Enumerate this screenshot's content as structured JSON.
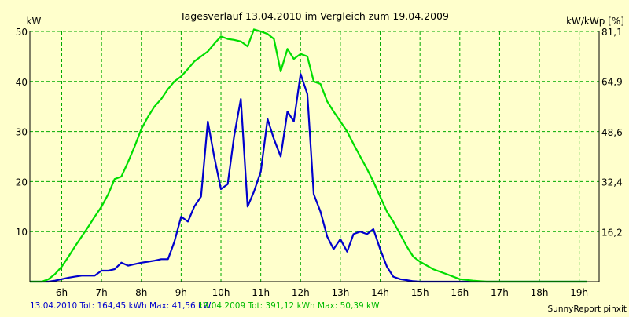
{
  "chart_data": {
    "type": "line",
    "title": "Tagesverlauf 13.04.2010 im Vergleich zum 19.04.2009",
    "ylabel_left": "kW",
    "ylabel_right": "kW/kWp [%]",
    "ylim": [
      0,
      50
    ],
    "yticks": [
      10,
      20,
      30,
      40,
      50
    ],
    "right_ylim": [
      0,
      81.1
    ],
    "right_yticks": [
      "16,2",
      "32,4",
      "48,6",
      "64,9",
      "81,1"
    ],
    "xlim": [
      5.2,
      19.5
    ],
    "xticks": [
      6,
      7,
      8,
      9,
      10,
      11,
      12,
      13,
      14,
      15,
      16,
      17,
      18,
      19
    ],
    "xtick_labels": [
      "6h",
      "7h",
      "8h",
      "9h",
      "10h",
      "11h",
      "12h",
      "13h",
      "14h",
      "15h",
      "16h",
      "17h",
      "18h",
      "19h"
    ],
    "grid": true,
    "colors": {
      "background": "#ffffcc",
      "grid": "#00aa00",
      "axis": "#000000"
    },
    "series": [
      {
        "name": "13.04.2010",
        "color": "#0000cc",
        "x": [
          5.2,
          5.67,
          5.83,
          6.0,
          6.17,
          6.33,
          6.5,
          6.67,
          6.83,
          7.0,
          7.17,
          7.33,
          7.5,
          7.67,
          7.83,
          8.0,
          8.17,
          8.33,
          8.5,
          8.67,
          8.83,
          9.0,
          9.17,
          9.33,
          9.5,
          9.67,
          9.83,
          10.0,
          10.17,
          10.33,
          10.5,
          10.67,
          10.83,
          11.0,
          11.17,
          11.33,
          11.5,
          11.67,
          11.83,
          12.0,
          12.17,
          12.33,
          12.5,
          12.67,
          12.83,
          13.0,
          13.17,
          13.33,
          13.5,
          13.67,
          13.83,
          14.0,
          14.17,
          14.33,
          14.5,
          14.67,
          14.83,
          15.0,
          15.17,
          15.33,
          15.5,
          15.67,
          15.83,
          16.0,
          16.17,
          16.33,
          16.5,
          16.67,
          16.83,
          17.0,
          17.17,
          17.33,
          17.5,
          17.67,
          17.83,
          18.0,
          18.33,
          18.67,
          19.0,
          19.2
        ],
        "values": [
          0,
          0,
          0.2,
          0.5,
          0.8,
          1.0,
          1.2,
          1.2,
          1.2,
          2.2,
          2.2,
          2.5,
          3.8,
          3.2,
          3.5,
          3.8,
          4.0,
          4.2,
          4.5,
          4.5,
          8.0,
          13.0,
          12.0,
          15.0,
          17.0,
          32.0,
          25.0,
          18.5,
          19.5,
          29.0,
          36.5,
          15.0,
          18.0,
          22.0,
          32.5,
          28.5,
          25.0,
          34.0,
          32.0,
          41.5,
          37.5,
          17.5,
          14.0,
          9.0,
          6.5,
          8.5,
          6.0,
          9.5,
          10.0,
          9.5,
          10.5,
          6.5,
          3.0,
          1.0,
          0.5,
          0.3,
          0.1,
          0,
          0,
          0,
          0,
          0,
          0,
          0,
          0,
          0,
          0,
          0,
          0,
          0,
          0,
          0,
          0,
          0,
          0,
          0,
          0,
          0,
          0,
          0
        ],
        "tot": "164,45 kWh",
        "max": "41,56 kW"
      },
      {
        "name": "19.04.2009",
        "color": "#00dd00",
        "x": [
          5.2,
          5.5,
          5.67,
          5.83,
          6.0,
          6.17,
          6.33,
          6.5,
          6.67,
          6.83,
          7.0,
          7.17,
          7.33,
          7.5,
          7.67,
          7.83,
          8.0,
          8.17,
          8.33,
          8.5,
          8.67,
          8.83,
          9.0,
          9.17,
          9.33,
          9.5,
          9.67,
          9.83,
          10.0,
          10.17,
          10.33,
          10.5,
          10.67,
          10.83,
          11.0,
          11.17,
          11.33,
          11.5,
          11.67,
          11.83,
          12.0,
          12.17,
          12.33,
          12.5,
          12.67,
          12.83,
          13.0,
          13.17,
          13.33,
          13.5,
          13.67,
          13.83,
          14.0,
          14.17,
          14.33,
          14.5,
          14.67,
          14.83,
          15.0,
          15.33,
          15.67,
          16.0,
          16.33,
          16.67,
          17.0,
          17.33,
          17.67,
          18.0,
          18.33,
          18.67,
          19.0,
          19.2
        ],
        "values": [
          0,
          0,
          0.5,
          1.5,
          3.0,
          5.0,
          7.0,
          9.0,
          11.0,
          13.0,
          15.0,
          17.5,
          20.5,
          21.0,
          24.0,
          27.0,
          30.5,
          33.0,
          35.0,
          36.5,
          38.5,
          40.0,
          41.0,
          42.5,
          44.0,
          45.0,
          46.0,
          47.5,
          49.0,
          48.5,
          48.3,
          48.0,
          47.0,
          50.4,
          50.0,
          49.5,
          48.5,
          42.0,
          46.5,
          44.5,
          45.5,
          45.0,
          40.0,
          39.5,
          36.0,
          34.0,
          32.0,
          30.0,
          27.5,
          25.0,
          22.5,
          20.0,
          17.0,
          14.0,
          12.0,
          9.5,
          7.0,
          5.0,
          4.0,
          2.5,
          1.5,
          0.5,
          0.2,
          0,
          0,
          0,
          0,
          0,
          0,
          0,
          0,
          0
        ],
        "tot": "391,12 kWh",
        "max": "50,39 kW"
      }
    ]
  },
  "footer": {
    "series1_text": "13.04.2010 Tot: 164,45 kWh Max: 41,56 kW",
    "series2_text": "19.04.2009 Tot: 391,12 kWh Max: 50,39 kW",
    "credit": "SunnyReport pinxit"
  }
}
